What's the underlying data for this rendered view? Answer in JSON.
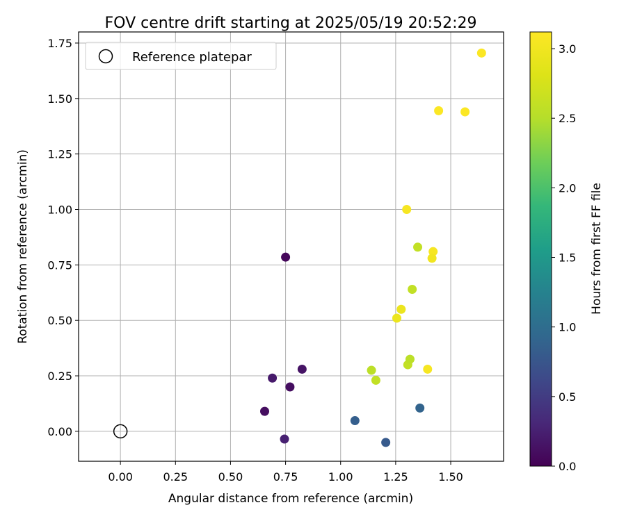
{
  "chart_data": {
    "type": "scatter",
    "title": "FOV centre drift starting at 2025/05/19 20:52:29",
    "xlabel": "Angular distance from reference (arcmin)",
    "ylabel": "Rotation from reference (arcmin)",
    "xlim": [
      -0.19,
      1.74
    ],
    "ylim": [
      -0.135,
      1.8
    ],
    "x_ticks": [
      "0.00",
      "0.25",
      "0.50",
      "0.75",
      "1.00",
      "1.25",
      "1.50"
    ],
    "y_ticks": [
      "0.00",
      "0.25",
      "0.50",
      "0.75",
      "1.00",
      "1.25",
      "1.50",
      "1.75"
    ],
    "grid": true,
    "legend": {
      "placement": "top-left",
      "label": "Reference platepar"
    },
    "reference_point": {
      "x": 0.0,
      "y": 0.0
    },
    "colorbar": {
      "label": "Hours from first FF file",
      "range": [
        0.0,
        3.12
      ],
      "ticks": [
        "0.0",
        "0.5",
        "1.0",
        "1.5",
        "2.0",
        "2.5",
        "3.0"
      ],
      "colormap": "viridis"
    },
    "points": [
      {
        "x": 0.75,
        "y": 0.785,
        "hours": 0.05
      },
      {
        "x": 0.69,
        "y": 0.24,
        "hours": 0.2
      },
      {
        "x": 0.77,
        "y": 0.2,
        "hours": 0.1
      },
      {
        "x": 0.825,
        "y": 0.28,
        "hours": 0.15
      },
      {
        "x": 0.655,
        "y": 0.09,
        "hours": 0.1
      },
      {
        "x": 0.745,
        "y": -0.035,
        "hours": 0.25
      },
      {
        "x": 1.065,
        "y": 0.048,
        "hours": 0.85
      },
      {
        "x": 1.205,
        "y": -0.05,
        "hours": 0.8
      },
      {
        "x": 1.36,
        "y": 0.105,
        "hours": 0.9
      },
      {
        "x": 1.14,
        "y": 0.275,
        "hours": 2.55
      },
      {
        "x": 1.16,
        "y": 0.23,
        "hours": 2.6
      },
      {
        "x": 1.305,
        "y": 0.3,
        "hours": 2.6
      },
      {
        "x": 1.315,
        "y": 0.325,
        "hours": 2.55
      },
      {
        "x": 1.325,
        "y": 0.64,
        "hours": 2.6
      },
      {
        "x": 1.35,
        "y": 0.83,
        "hours": 2.6
      },
      {
        "x": 1.275,
        "y": 0.55,
        "hours": 2.95
      },
      {
        "x": 1.255,
        "y": 0.51,
        "hours": 2.95
      },
      {
        "x": 1.395,
        "y": 0.28,
        "hours": 3.05
      },
      {
        "x": 1.3,
        "y": 1.0,
        "hours": 3.05
      },
      {
        "x": 1.42,
        "y": 0.81,
        "hours": 3.05
      },
      {
        "x": 1.415,
        "y": 0.78,
        "hours": 3.0
      },
      {
        "x": 1.445,
        "y": 1.445,
        "hours": 3.1
      },
      {
        "x": 1.565,
        "y": 1.44,
        "hours": 3.1
      },
      {
        "x": 1.64,
        "y": 1.705,
        "hours": 3.1
      }
    ]
  }
}
